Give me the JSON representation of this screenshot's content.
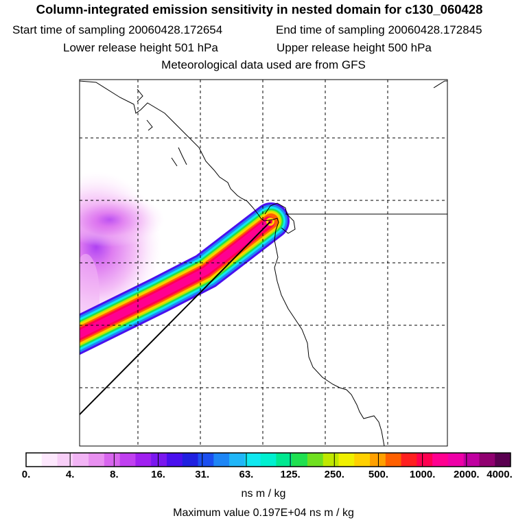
{
  "header": {
    "title": "Column-integrated emission sensitivity in nested domain for c130_060428",
    "start_time": "Start time of sampling 20060428.172654",
    "end_time": "End time of sampling 20060428.172845",
    "lower_height": "Lower release height  501 hPa",
    "upper_height": "Upper release height  500 hPa",
    "met_data": "Meteorological data used are from GFS"
  },
  "colorbar": {
    "labels": [
      "0.",
      "4.",
      "8.",
      "16.",
      "31.",
      "63.",
      "125.",
      "250.",
      "500.",
      "1000.",
      "2000.",
      "4000."
    ],
    "unit": "ns m / kg",
    "colors": [
      "#ffffff",
      "#fde8fd",
      "#f8cff8",
      "#f2b4f5",
      "#e890f0",
      "#d865ee",
      "#c040f0",
      "#a020f0",
      "#7a18ef",
      "#4a10ee",
      "#2020e0",
      "#1b4ff0",
      "#1e86f5",
      "#20b6f8",
      "#10e8f0",
      "#00f0d0",
      "#00e890",
      "#20e050",
      "#70e020",
      "#c0e800",
      "#f0f000",
      "#ffd000",
      "#ffa000",
      "#ff6000",
      "#ff2020",
      "#ff0050",
      "#ff0090",
      "#ee00a8",
      "#c000a0",
      "#900070",
      "#5a0050"
    ]
  },
  "max_value": "Maximum value  0.197E+04 ns m / kg"
}
